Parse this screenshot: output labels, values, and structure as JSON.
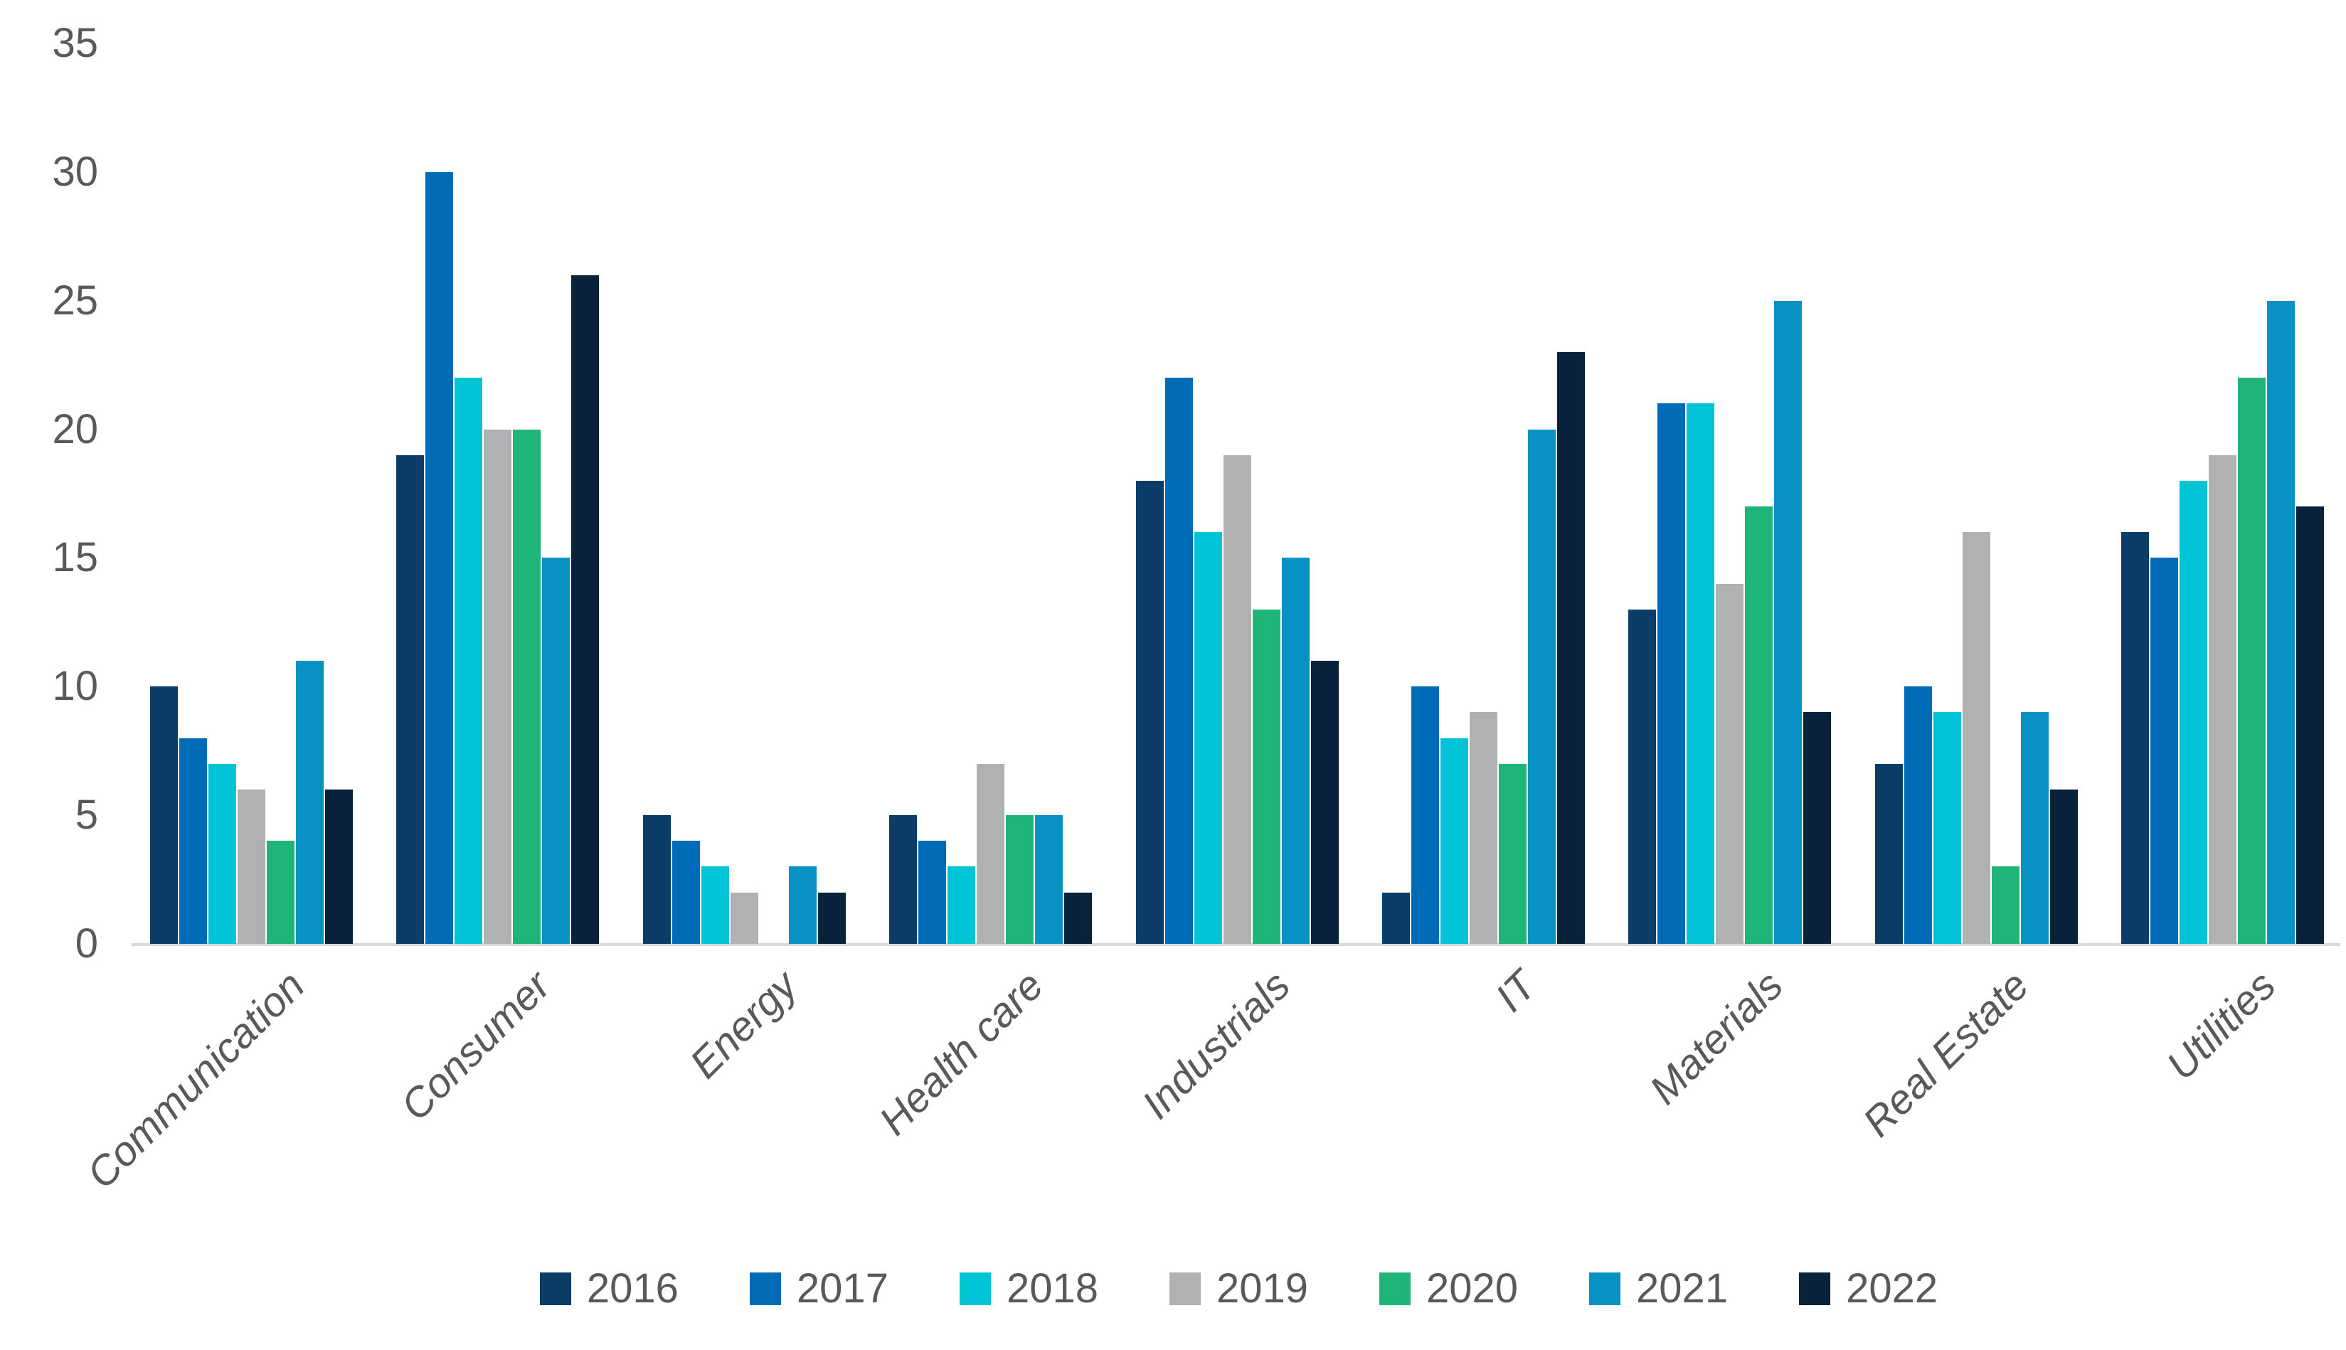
{
  "chart_data": {
    "type": "bar",
    "title": "",
    "xlabel": "",
    "ylabel": "",
    "categories": [
      "Communication",
      "Consumer",
      "Energy",
      "Health care",
      "Industrials",
      "IT",
      "Materials",
      "Real Estate",
      "Utilities"
    ],
    "series": [
      {
        "name": "2016",
        "color": "#0C3D68",
        "values": [
          10,
          19,
          5,
          5,
          18,
          2,
          13,
          7,
          16
        ]
      },
      {
        "name": "2017",
        "color": "#006BB6",
        "values": [
          8,
          30,
          4,
          4,
          22,
          10,
          21,
          10,
          15
        ]
      },
      {
        "name": "2018",
        "color": "#00C4D5",
        "values": [
          7,
          22,
          3,
          3,
          16,
          8,
          21,
          9,
          18
        ]
      },
      {
        "name": "2019",
        "color": "#AFB1B3",
        "values": [
          6,
          20,
          2,
          7,
          19,
          9,
          14,
          16,
          19
        ]
      },
      {
        "name": "2020",
        "color": "#1FB478",
        "values": [
          4,
          20,
          0,
          5,
          13,
          7,
          17,
          3,
          22
        ]
      },
      {
        "name": "2021",
        "color": "#0792C3",
        "values": [
          11,
          15,
          3,
          5,
          15,
          20,
          25,
          9,
          25
        ]
      },
      {
        "name": "2022",
        "color": "#07223A",
        "values": [
          6,
          26,
          2,
          2,
          11,
          23,
          9,
          6,
          17
        ]
      }
    ],
    "ylim": [
      0,
      35
    ],
    "yticks": [
      0,
      5,
      10,
      15,
      20,
      25,
      30,
      35
    ],
    "grid": false,
    "legend_position": "bottom",
    "axis": {
      "label_color": "#595959",
      "line_color": "#D9D9D9",
      "background": "#FFFFFF"
    }
  }
}
